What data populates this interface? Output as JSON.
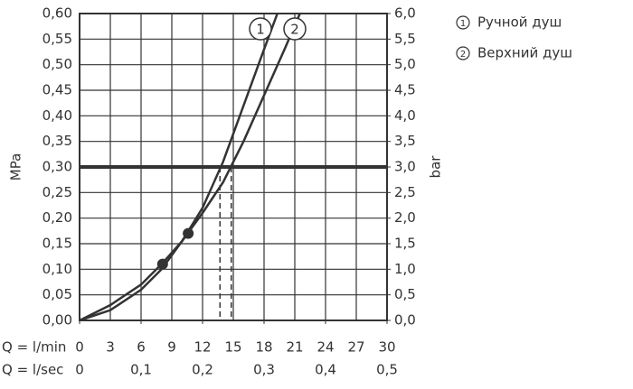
{
  "chart_data": {
    "type": "line",
    "y_label": "MPa",
    "y2_label": "bar",
    "x_label": "Q = l/min",
    "x2_label": "Q = l/sec",
    "xlim": [
      0,
      30
    ],
    "xticks": [
      0,
      3,
      6,
      9,
      12,
      15,
      18,
      21,
      24,
      27,
      30
    ],
    "x2lim": [
      0,
      0.5
    ],
    "x2ticks": [
      0,
      {
        "value": 0.1,
        "label": "0,1"
      },
      {
        "value": 0.2,
        "label": "0,2"
      },
      {
        "value": 0.3,
        "label": "0,3"
      },
      {
        "value": 0.4,
        "label": "0,4"
      },
      {
        "value": 0.5,
        "label": "0,5"
      }
    ],
    "ylim": [
      0,
      0.6
    ],
    "yticks": [
      {
        "value": 0,
        "label": "0,00"
      },
      {
        "value": 0.05,
        "label": "0,05"
      },
      {
        "value": 0.1,
        "label": "0,10"
      },
      {
        "value": 0.15,
        "label": "0,15"
      },
      {
        "value": 0.2,
        "label": "0,20"
      },
      {
        "value": 0.25,
        "label": "0,25"
      },
      {
        "value": 0.3,
        "label": "0,30"
      },
      {
        "value": 0.35,
        "label": "0,35"
      },
      {
        "value": 0.4,
        "label": "0,40"
      },
      {
        "value": 0.45,
        "label": "0,45"
      },
      {
        "value": 0.5,
        "label": "0,50"
      },
      {
        "value": 0.55,
        "label": "0,55"
      },
      {
        "value": 0.6,
        "label": "0,60"
      }
    ],
    "y2lim": [
      0,
      6
    ],
    "y2ticks": [
      {
        "value": 0,
        "label": "0,0"
      },
      {
        "value": 0.5,
        "label": "0,5"
      },
      {
        "value": 1,
        "label": "1,0"
      },
      {
        "value": 1.5,
        "label": "1,5"
      },
      {
        "value": 2,
        "label": "2,0"
      },
      {
        "value": 2.5,
        "label": "2,5"
      },
      {
        "value": 3,
        "label": "3,0"
      },
      {
        "value": 3.5,
        "label": "3,5"
      },
      {
        "value": 4,
        "label": "4,0"
      },
      {
        "value": 4.5,
        "label": "4,5"
      },
      {
        "value": 5,
        "label": "5,0"
      },
      {
        "value": 5.5,
        "label": "5,5"
      },
      {
        "value": 6,
        "label": "6,0"
      }
    ],
    "grid": true,
    "color": "#333333",
    "series": [
      {
        "name": "Ручной душ",
        "tag": "1",
        "color": "#333333",
        "x": [
          0,
          3,
          6,
          8,
          10,
          12,
          14,
          16,
          18,
          19.3
        ],
        "values": [
          0,
          0.02,
          0.06,
          0.1,
          0.155,
          0.22,
          0.31,
          0.42,
          0.53,
          0.6
        ]
      },
      {
        "name": "Верхний душ",
        "tag": "2",
        "color": "#333333",
        "x": [
          0,
          3,
          6,
          8,
          10,
          12,
          14,
          16,
          18,
          20,
          21.5
        ],
        "values": [
          0,
          0.03,
          0.07,
          0.11,
          0.155,
          0.21,
          0.27,
          0.35,
          0.44,
          0.53,
          0.6
        ]
      }
    ],
    "markers": {
      "x": [
        8.1,
        10.6
      ],
      "values": [
        0.11,
        0.17
      ]
    },
    "reference": {
      "y": 0.3,
      "x": [
        13.7,
        14.8
      ]
    }
  }
}
